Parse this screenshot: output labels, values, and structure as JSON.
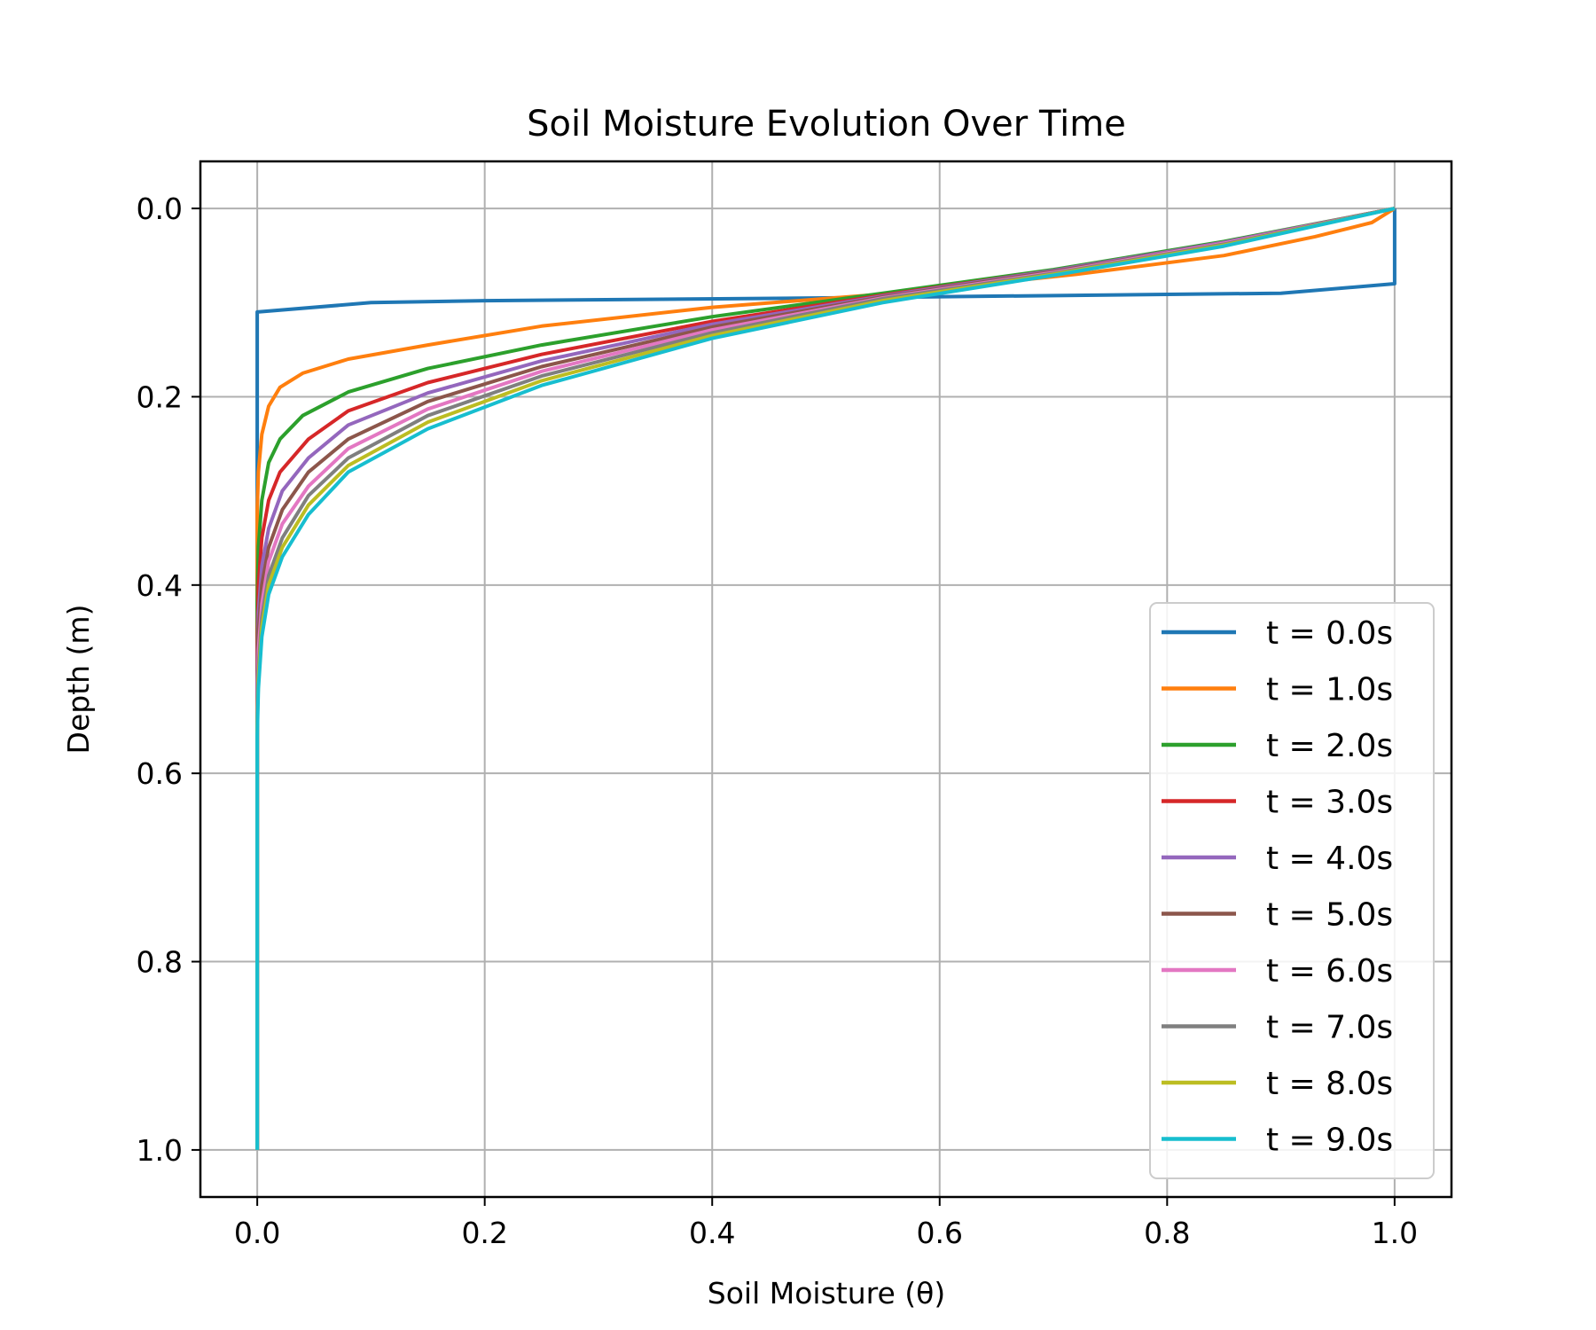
{
  "chart_data": {
    "type": "line",
    "title": "Soil Moisture Evolution Over Time",
    "xlabel": "Soil Moisture (θ)",
    "ylabel": "Depth (m)",
    "xlim": [
      -0.05,
      1.05
    ],
    "ylim": [
      1.05,
      -0.05
    ],
    "y_inverted": true,
    "x_ticks": [
      "0.0",
      "0.2",
      "0.4",
      "0.6",
      "0.8",
      "1.0"
    ],
    "y_ticks": [
      "0.0",
      "0.2",
      "0.4",
      "0.6",
      "0.8",
      "1.0"
    ],
    "grid": true,
    "legend_position": "lower-right",
    "series": [
      {
        "name": "t = 0.0s",
        "color": "#1f77b4",
        "points": [
          [
            1.0,
            0.0
          ],
          [
            1.0,
            0.08
          ],
          [
            0.9,
            0.09
          ],
          [
            0.5,
            0.095
          ],
          [
            0.2,
            0.098
          ],
          [
            0.1,
            0.1
          ],
          [
            0.0,
            0.11
          ],
          [
            0.0,
            1.0
          ]
        ]
      },
      {
        "name": "t = 1.0s",
        "color": "#ff7f0e",
        "points": [
          [
            1.0,
            0.0
          ],
          [
            0.98,
            0.015
          ],
          [
            0.93,
            0.03
          ],
          [
            0.85,
            0.05
          ],
          [
            0.72,
            0.07
          ],
          [
            0.56,
            0.09
          ],
          [
            0.4,
            0.105
          ],
          [
            0.25,
            0.125
          ],
          [
            0.15,
            0.145
          ],
          [
            0.08,
            0.16
          ],
          [
            0.04,
            0.175
          ],
          [
            0.02,
            0.19
          ],
          [
            0.01,
            0.21
          ],
          [
            0.004,
            0.24
          ],
          [
            0.001,
            0.28
          ],
          [
            0.0,
            0.32
          ],
          [
            0.0,
            1.0
          ]
        ]
      },
      {
        "name": "t = 2.0s",
        "color": "#2ca02c",
        "points": [
          [
            1.0,
            0.0
          ],
          [
            0.85,
            0.035
          ],
          [
            0.7,
            0.065
          ],
          [
            0.55,
            0.09
          ],
          [
            0.4,
            0.115
          ],
          [
            0.25,
            0.145
          ],
          [
            0.15,
            0.17
          ],
          [
            0.08,
            0.195
          ],
          [
            0.04,
            0.22
          ],
          [
            0.02,
            0.245
          ],
          [
            0.01,
            0.27
          ],
          [
            0.004,
            0.31
          ],
          [
            0.001,
            0.36
          ],
          [
            0.0,
            0.42
          ],
          [
            0.0,
            1.0
          ]
        ]
      },
      {
        "name": "t = 3.0s",
        "color": "#d62728",
        "points": [
          [
            1.0,
            0.0
          ],
          [
            0.85,
            0.036
          ],
          [
            0.7,
            0.066
          ],
          [
            0.55,
            0.092
          ],
          [
            0.4,
            0.12
          ],
          [
            0.25,
            0.155
          ],
          [
            0.15,
            0.185
          ],
          [
            0.08,
            0.215
          ],
          [
            0.045,
            0.245
          ],
          [
            0.02,
            0.28
          ],
          [
            0.01,
            0.31
          ],
          [
            0.004,
            0.35
          ],
          [
            0.001,
            0.4
          ],
          [
            0.0,
            0.47
          ],
          [
            0.0,
            1.0
          ]
        ]
      },
      {
        "name": "t = 4.0s",
        "color": "#9467bd",
        "points": [
          [
            1.0,
            0.0
          ],
          [
            0.85,
            0.036
          ],
          [
            0.7,
            0.066
          ],
          [
            0.55,
            0.093
          ],
          [
            0.4,
            0.123
          ],
          [
            0.25,
            0.162
          ],
          [
            0.15,
            0.196
          ],
          [
            0.08,
            0.23
          ],
          [
            0.045,
            0.265
          ],
          [
            0.022,
            0.3
          ],
          [
            0.01,
            0.34
          ],
          [
            0.004,
            0.38
          ],
          [
            0.001,
            0.43
          ],
          [
            0.0,
            0.5
          ],
          [
            0.0,
            1.0
          ]
        ]
      },
      {
        "name": "t = 5.0s",
        "color": "#8c564b",
        "points": [
          [
            1.0,
            0.0
          ],
          [
            0.85,
            0.037
          ],
          [
            0.7,
            0.067
          ],
          [
            0.55,
            0.094
          ],
          [
            0.4,
            0.126
          ],
          [
            0.25,
            0.168
          ],
          [
            0.15,
            0.205
          ],
          [
            0.08,
            0.245
          ],
          [
            0.045,
            0.28
          ],
          [
            0.022,
            0.32
          ],
          [
            0.01,
            0.36
          ],
          [
            0.004,
            0.4
          ],
          [
            0.001,
            0.45
          ],
          [
            0.0,
            0.52
          ],
          [
            0.0,
            1.0
          ]
        ]
      },
      {
        "name": "t = 6.0s",
        "color": "#e377c2",
        "points": [
          [
            1.0,
            0.0
          ],
          [
            0.85,
            0.037
          ],
          [
            0.7,
            0.068
          ],
          [
            0.55,
            0.095
          ],
          [
            0.4,
            0.129
          ],
          [
            0.25,
            0.173
          ],
          [
            0.15,
            0.213
          ],
          [
            0.08,
            0.255
          ],
          [
            0.045,
            0.295
          ],
          [
            0.022,
            0.335
          ],
          [
            0.01,
            0.375
          ],
          [
            0.004,
            0.42
          ],
          [
            0.001,
            0.47
          ],
          [
            0.0,
            0.53
          ],
          [
            0.0,
            1.0
          ]
        ]
      },
      {
        "name": "t = 7.0s",
        "color": "#7f7f7f",
        "points": [
          [
            1.0,
            0.0
          ],
          [
            0.85,
            0.038
          ],
          [
            0.7,
            0.069
          ],
          [
            0.55,
            0.096
          ],
          [
            0.4,
            0.132
          ],
          [
            0.25,
            0.178
          ],
          [
            0.15,
            0.22
          ],
          [
            0.08,
            0.265
          ],
          [
            0.045,
            0.305
          ],
          [
            0.022,
            0.35
          ],
          [
            0.01,
            0.39
          ],
          [
            0.004,
            0.435
          ],
          [
            0.001,
            0.49
          ],
          [
            0.0,
            0.54
          ],
          [
            0.0,
            1.0
          ]
        ]
      },
      {
        "name": "t = 8.0s",
        "color": "#bcbd22",
        "points": [
          [
            1.0,
            0.0
          ],
          [
            0.85,
            0.039
          ],
          [
            0.7,
            0.07
          ],
          [
            0.55,
            0.098
          ],
          [
            0.4,
            0.135
          ],
          [
            0.25,
            0.183
          ],
          [
            0.15,
            0.227
          ],
          [
            0.08,
            0.273
          ],
          [
            0.045,
            0.315
          ],
          [
            0.022,
            0.36
          ],
          [
            0.01,
            0.4
          ],
          [
            0.004,
            0.445
          ],
          [
            0.001,
            0.5
          ],
          [
            0.0,
            0.55
          ],
          [
            0.0,
            1.0
          ]
        ]
      },
      {
        "name": "t = 9.0s",
        "color": "#17becf",
        "points": [
          [
            1.0,
            0.0
          ],
          [
            0.85,
            0.04
          ],
          [
            0.7,
            0.071
          ],
          [
            0.55,
            0.1
          ],
          [
            0.4,
            0.138
          ],
          [
            0.25,
            0.188
          ],
          [
            0.15,
            0.234
          ],
          [
            0.08,
            0.28
          ],
          [
            0.045,
            0.325
          ],
          [
            0.022,
            0.37
          ],
          [
            0.01,
            0.41
          ],
          [
            0.004,
            0.455
          ],
          [
            0.001,
            0.51
          ],
          [
            0.0,
            0.56
          ],
          [
            0.0,
            1.0
          ]
        ]
      }
    ]
  }
}
